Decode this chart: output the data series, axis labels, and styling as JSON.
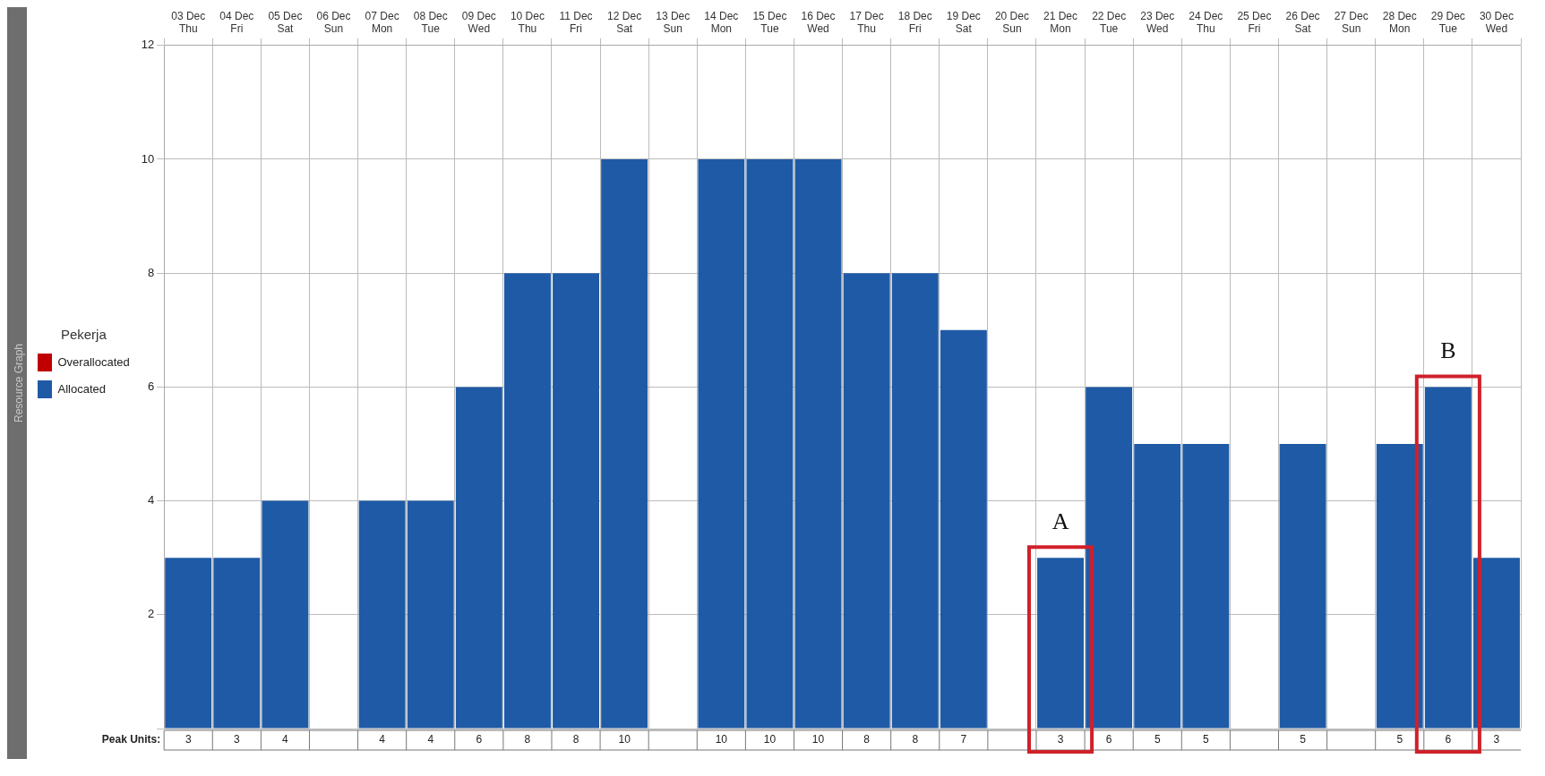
{
  "chart_data": {
    "type": "bar",
    "categories": [
      "03 Dec Thu",
      "04 Dec Fri",
      "05 Dec Sat",
      "06 Dec Sun",
      "07 Dec Mon",
      "08 Dec Tue",
      "09 Dec Wed",
      "10 Dec Thu",
      "11 Dec Fri",
      "12 Dec Sat",
      "13 Dec Sun",
      "14 Dec Mon",
      "15 Dec Tue",
      "16 Dec Wed",
      "17 Dec Thu",
      "18 Dec Fri",
      "19 Dec Sat",
      "20 Dec Sun",
      "21 Dec Mon",
      "22 Dec Tue",
      "23 Dec Wed",
      "24 Dec Thu",
      "25 Dec Fri",
      "26 Dec Sat",
      "27 Dec Sun",
      "28 Dec Mon",
      "29 Dec Tue",
      "30 Dec Wed"
    ],
    "series": [
      {
        "name": "Overallocated",
        "color": "#c00000",
        "values": [
          null,
          null,
          null,
          null,
          null,
          null,
          null,
          null,
          null,
          null,
          null,
          null,
          null,
          null,
          null,
          null,
          null,
          null,
          null,
          null,
          null,
          null,
          null,
          null,
          null,
          null,
          null,
          null
        ]
      },
      {
        "name": "Allocated",
        "color": "#1f5aa6",
        "values": [
          3,
          3,
          4,
          null,
          4,
          4,
          6,
          8,
          8,
          10,
          null,
          10,
          10,
          10,
          8,
          8,
          7,
          null,
          3,
          6,
          5,
          5,
          null,
          5,
          null,
          5,
          6,
          3
        ]
      }
    ],
    "legend_title": "Pekerja",
    "legend": "left",
    "xlabel": "Peak Units:",
    "data_labels": true,
    "grid": true,
    "ylim": [
      0,
      12
    ],
    "yticks": [
      {
        "value": 0,
        "label": null
      },
      2,
      4,
      6,
      8,
      10,
      12
    ],
    "annotations": [
      "Resource Graph",
      {
        "text": "A",
        "x": "21 Dec Mon",
        "y": 3
      },
      {
        "text": "B",
        "x": "29 Dec Tue",
        "y": 6
      }
    ]
  }
}
